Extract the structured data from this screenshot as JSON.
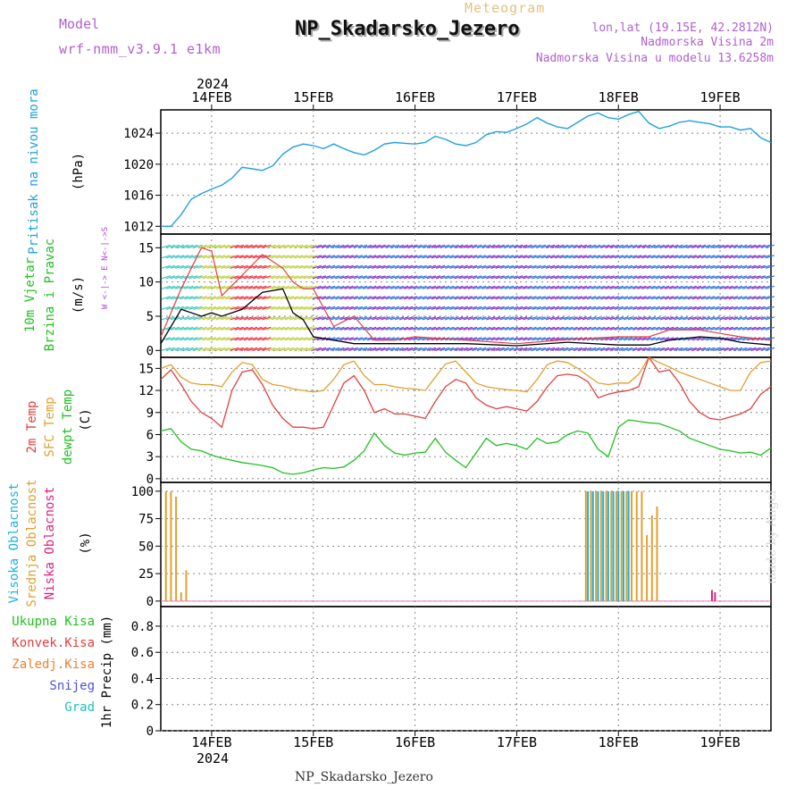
{
  "header": {
    "model_label": "Model",
    "model_name": "wrf-nmm_v3.9.1  e1km",
    "meteogram": "Meteogram",
    "station": "NP_Skadarsko_Jezero",
    "coords": "lon,lat (19.15E, 42.2812N)",
    "alt_station": "Nadmorska Visina 2m",
    "alt_model": "Nadmorska Visina u modelu 13.6258m"
  },
  "footer": {
    "station": "NP_Skadarsko_Jezero",
    "credit": "made by Angel"
  },
  "time_axis": {
    "year": "2024",
    "date_ticks": [
      {
        "label": "14FEB",
        "t": 14.0
      },
      {
        "label": "15FEB",
        "t": 15.0
      },
      {
        "label": "16FEB",
        "t": 16.0
      },
      {
        "label": "17FEB",
        "t": 17.0
      },
      {
        "label": "18FEB",
        "t": 18.0
      },
      {
        "label": "19FEB",
        "t": 19.0
      }
    ],
    "range": [
      13.5,
      19.5
    ]
  },
  "colors": {
    "pressure": "#20a0e0",
    "t2m": "#e04040",
    "sfc": "#e0a030",
    "dew": "#20c020",
    "high_cloud": "#20b0e0",
    "mid_cloud": "#e0a030",
    "low_cloud": "#e02080",
    "wind_label": "#20c020",
    "wind_axis": "#b040e0"
  },
  "chart_data": [
    {
      "type": "line",
      "id": "pressure",
      "panel_labels": [
        "Pritisak na nivou mora"
      ],
      "unit": "(hPa)",
      "yticks": [
        1012,
        1016,
        1020,
        1024
      ],
      "ylim": [
        1011,
        1027
      ],
      "grid": true,
      "series": [
        {
          "x": [
            13.5,
            13.6,
            13.7,
            13.8,
            13.9,
            14.0,
            14.1,
            14.2,
            14.3,
            14.4,
            14.5,
            14.6,
            14.7,
            14.8,
            14.9,
            15.0,
            15.1,
            15.2,
            15.3,
            15.4,
            15.5,
            15.6,
            15.7,
            15.8,
            15.9,
            16.0,
            16.1,
            16.2,
            16.3,
            16.4,
            16.5,
            16.6,
            16.7,
            16.8,
            16.9,
            17.0,
            17.1,
            17.2,
            17.3,
            17.4,
            17.5,
            17.6,
            17.7,
            17.8,
            17.9,
            18.0,
            18.1,
            18.2,
            18.3,
            18.4,
            18.5,
            18.6,
            18.7,
            18.8,
            18.9,
            19.0,
            19.1,
            19.2,
            19.3,
            19.4,
            19.5
          ],
          "values": [
            1012.0,
            1012.0,
            1013.5,
            1015.5,
            1016.2,
            1016.8,
            1017.3,
            1018.2,
            1019.6,
            1019.4,
            1019.2,
            1019.8,
            1021.3,
            1022.2,
            1022.6,
            1022.4,
            1022.0,
            1022.6,
            1022.0,
            1021.5,
            1021.2,
            1021.8,
            1022.6,
            1022.8,
            1022.7,
            1022.6,
            1022.8,
            1023.6,
            1023.2,
            1022.6,
            1022.4,
            1022.8,
            1023.8,
            1024.2,
            1024.1,
            1024.6,
            1025.2,
            1026.0,
            1025.3,
            1024.8,
            1024.6,
            1025.4,
            1026.2,
            1026.6,
            1026.0,
            1025.8,
            1026.4,
            1026.8,
            1025.3,
            1024.6,
            1024.9,
            1025.4,
            1025.6,
            1025.4,
            1025.2,
            1024.8,
            1024.8,
            1024.4,
            1024.6,
            1023.4,
            1022.8
          ]
        }
      ]
    },
    {
      "type": "barbs",
      "id": "wind",
      "panel_labels": [
        "10m Vjetar",
        "Brzina i Pravac"
      ],
      "unit": "(m/s)",
      "direction_legend": "W <-|-> E   N<-|->S",
      "yticks": [
        0,
        5,
        10,
        15
      ],
      "ylim": [
        -1,
        17
      ],
      "grid": true,
      "series": [
        {
          "name": "speed",
          "x": [
            13.5,
            13.7,
            13.9,
            14.0,
            14.1,
            14.3,
            14.5,
            14.7,
            14.8,
            14.9,
            15.0,
            15.2,
            15.4,
            15.6,
            15.8,
            16.0,
            16.5,
            17.0,
            17.5,
            18.0,
            18.3,
            18.5,
            18.8,
            19.0,
            19.2,
            19.5
          ],
          "values": [
            1.0,
            6.0,
            5.0,
            5.5,
            5.0,
            6.0,
            8.5,
            9.0,
            5.5,
            4.5,
            2.0,
            1.5,
            1.0,
            1.0,
            1.0,
            1.0,
            1.0,
            0.7,
            1.2,
            0.8,
            0.8,
            1.5,
            2.0,
            1.8,
            1.2,
            0.8
          ]
        },
        {
          "name": "gust",
          "x": [
            13.5,
            13.7,
            13.9,
            14.0,
            14.1,
            14.3,
            14.5,
            14.7,
            14.8,
            14.9,
            15.0,
            15.2,
            15.4,
            15.6,
            15.8,
            16.0,
            16.5,
            17.0,
            17.5,
            18.0,
            18.3,
            18.5,
            18.8,
            19.0,
            19.2,
            19.5
          ],
          "values": [
            2.0,
            9.0,
            15.0,
            14.5,
            8.0,
            11.0,
            14.0,
            12.0,
            10.0,
            9.0,
            9.0,
            3.5,
            5.0,
            1.5,
            1.5,
            2.0,
            1.5,
            1.0,
            1.6,
            2.0,
            2.0,
            3.0,
            3.0,
            2.5,
            2.0,
            1.5
          ]
        }
      ]
    },
    {
      "type": "line",
      "id": "temperature",
      "panel_labels": [
        "2m Temp",
        "SFC Temp",
        "dewpt Temp"
      ],
      "unit": "(C)",
      "yticks": [
        0,
        3,
        6,
        9,
        12,
        15
      ],
      "ylim": [
        -0.5,
        16.5
      ],
      "grid": true,
      "series": [
        {
          "name": "2m Temp",
          "x": [
            13.5,
            13.6,
            13.7,
            13.8,
            13.9,
            14.0,
            14.1,
            14.2,
            14.3,
            14.4,
            14.5,
            14.6,
            14.7,
            14.8,
            14.9,
            15.0,
            15.1,
            15.2,
            15.3,
            15.4,
            15.5,
            15.6,
            15.7,
            15.8,
            15.9,
            16.0,
            16.1,
            16.2,
            16.3,
            16.4,
            16.5,
            16.6,
            16.7,
            16.8,
            16.9,
            17.0,
            17.1,
            17.2,
            17.3,
            17.4,
            17.5,
            17.6,
            17.7,
            17.8,
            17.9,
            18.0,
            18.1,
            18.2,
            18.3,
            18.4,
            18.5,
            18.6,
            18.7,
            18.8,
            18.9,
            19.0,
            19.1,
            19.2,
            19.3,
            19.4,
            19.5
          ],
          "values": [
            13.5,
            14.8,
            12.8,
            10.5,
            9.0,
            8.2,
            7.0,
            12.0,
            14.5,
            14.8,
            12.8,
            10.0,
            8.2,
            7.0,
            7.0,
            6.8,
            7.0,
            10.0,
            13.0,
            14.0,
            12.0,
            9.0,
            9.5,
            8.8,
            8.8,
            8.5,
            8.2,
            10.5,
            12.5,
            13.5,
            13.0,
            11.0,
            10.0,
            9.5,
            9.8,
            9.5,
            9.2,
            10.5,
            12.5,
            14.0,
            14.2,
            14.0,
            13.2,
            11.0,
            11.5,
            11.8,
            12.0,
            12.5,
            16.5,
            14.5,
            14.8,
            13.0,
            10.5,
            9.0,
            8.2,
            8.0,
            8.4,
            8.8,
            9.5,
            11.5,
            12.5
          ]
        },
        {
          "name": "SFC Temp",
          "x": [
            13.5,
            13.6,
            13.7,
            13.8,
            13.9,
            14.0,
            14.1,
            14.2,
            14.3,
            14.4,
            14.5,
            14.6,
            14.7,
            14.8,
            14.9,
            15.0,
            15.1,
            15.2,
            15.3,
            15.4,
            15.5,
            15.6,
            15.7,
            15.8,
            15.9,
            16.0,
            16.1,
            16.2,
            16.3,
            16.4,
            16.5,
            16.6,
            16.7,
            16.8,
            16.9,
            17.0,
            17.1,
            17.2,
            17.3,
            17.4,
            17.5,
            17.6,
            17.7,
            17.8,
            17.9,
            18.0,
            18.1,
            18.2,
            18.3,
            18.4,
            18.5,
            18.6,
            18.7,
            18.8,
            18.9,
            19.0,
            19.1,
            19.2,
            19.3,
            19.4,
            19.5
          ],
          "values": [
            15.0,
            15.5,
            13.8,
            13.0,
            12.8,
            12.8,
            12.5,
            14.5,
            15.8,
            15.5,
            13.5,
            12.8,
            12.6,
            12.2,
            12.0,
            11.8,
            12.0,
            13.5,
            15.5,
            16.0,
            14.0,
            12.8,
            12.8,
            12.5,
            12.3,
            12.2,
            12.0,
            13.8,
            15.6,
            16.0,
            14.5,
            13.0,
            12.5,
            12.3,
            12.1,
            12.0,
            11.8,
            13.5,
            15.5,
            16.0,
            15.8,
            15.0,
            14.0,
            13.0,
            12.8,
            13.0,
            13.0,
            14.2,
            16.5,
            15.8,
            15.2,
            14.5,
            14.0,
            13.5,
            13.0,
            12.5,
            12.0,
            12.0,
            14.5,
            15.8,
            16.0
          ]
        },
        {
          "name": "dewpt Temp",
          "x": [
            13.5,
            13.6,
            13.7,
            13.8,
            13.9,
            14.0,
            14.1,
            14.2,
            14.3,
            14.4,
            14.5,
            14.6,
            14.7,
            14.8,
            14.9,
            15.0,
            15.1,
            15.2,
            15.3,
            15.4,
            15.5,
            15.6,
            15.7,
            15.8,
            15.9,
            16.0,
            16.1,
            16.2,
            16.3,
            16.4,
            16.5,
            16.6,
            16.7,
            16.8,
            16.9,
            17.0,
            17.1,
            17.2,
            17.3,
            17.4,
            17.5,
            17.6,
            17.7,
            17.8,
            17.9,
            18.0,
            18.1,
            18.2,
            18.3,
            18.4,
            18.5,
            18.6,
            18.7,
            18.8,
            18.9,
            19.0,
            19.1,
            19.2,
            19.3,
            19.4,
            19.5
          ],
          "values": [
            6.5,
            6.8,
            5.0,
            4.0,
            3.8,
            3.2,
            2.8,
            2.5,
            2.2,
            2.0,
            1.8,
            1.5,
            0.8,
            0.6,
            0.8,
            1.2,
            1.5,
            1.4,
            1.6,
            2.5,
            3.8,
            6.2,
            4.5,
            3.5,
            3.2,
            3.5,
            3.6,
            5.5,
            3.6,
            2.5,
            1.5,
            3.5,
            5.5,
            4.5,
            4.8,
            4.5,
            4.0,
            5.5,
            4.8,
            5.0,
            6.0,
            6.5,
            6.2,
            4.0,
            3.0,
            7.0,
            8.0,
            7.8,
            7.6,
            7.5,
            7.0,
            6.5,
            5.5,
            5.0,
            4.5,
            4.0,
            3.8,
            3.5,
            3.6,
            3.2,
            4.2
          ]
        }
      ]
    },
    {
      "type": "bar",
      "id": "cloud",
      "panel_labels": [
        "Visoka Oblacnost",
        "Srednja Oblacnost",
        "Niska Oblacnost"
      ],
      "unit": "(%)",
      "yticks": [
        0,
        25,
        50,
        75,
        100
      ],
      "ylim": [
        -5,
        108
      ],
      "grid": true,
      "series": [
        {
          "name": "Srednja Oblacnost",
          "x": [
            13.55,
            13.6,
            13.65,
            13.7,
            13.75,
            17.68,
            17.73,
            17.78,
            17.83,
            17.88,
            17.93,
            17.98,
            18.03,
            18.08,
            18.13,
            18.18,
            18.23,
            18.28,
            18.33,
            18.38
          ],
          "values": [
            100,
            100,
            95,
            8,
            28,
            100,
            100,
            100,
            100,
            100,
            100,
            100,
            100,
            100,
            100,
            100,
            100,
            60,
            78,
            86
          ]
        },
        {
          "name": "Visoka Oblacnost",
          "x": [
            17.7,
            17.75,
            17.8,
            17.85,
            17.9,
            17.95,
            18.0,
            18.05,
            18.1
          ],
          "values": [
            100,
            100,
            100,
            100,
            100,
            100,
            100,
            100,
            100
          ]
        },
        {
          "name": "Niska Oblacnost",
          "x": [
            18.92,
            18.95
          ],
          "values": [
            10,
            8
          ]
        }
      ]
    },
    {
      "type": "bar",
      "id": "precip",
      "legend": [
        "Ukupna Kisa",
        "Konvek.Kisa",
        "Zaledj.Kisa",
        "Snijeg",
        "Grad"
      ],
      "ylabel": "1hr Precip (mm)",
      "yticks": [
        0,
        0.2,
        0.4,
        0.6,
        0.8
      ],
      "ylim": [
        0,
        0.95
      ],
      "grid": true,
      "series": [
        {
          "name": "Ukupna Kisa",
          "x": [],
          "values": []
        }
      ]
    }
  ]
}
